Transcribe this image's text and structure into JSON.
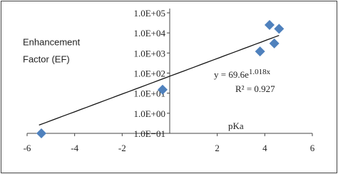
{
  "chart_data": {
    "type": "scatter",
    "y_label_lines": [
      "Enhancement",
      "Factor (EF)"
    ],
    "x_label": "pKa",
    "x": [
      -5.4,
      -0.3,
      3.8,
      4.2,
      4.4,
      4.6
    ],
    "series": [
      {
        "color": "#4f81bd",
        "values": [
          0.1,
          15,
          1200,
          25000,
          3000,
          16000
        ]
      }
    ],
    "xlim": [
      -6,
      6
    ],
    "xticks": [
      -6,
      -4,
      -2,
      2,
      4,
      6
    ],
    "ylim": [
      0.1,
      100000
    ],
    "log_y": true,
    "yticks": [
      {
        "value": 100000,
        "label": "1.0E+05"
      },
      {
        "value": 10000,
        "label": "1.0E+04"
      },
      {
        "value": 1000,
        "label": "1.0E+03"
      },
      {
        "value": 100,
        "label": "1.0E+02"
      },
      {
        "value": 10,
        "label": "1.0E+01"
      },
      {
        "value": 1,
        "label": "1.0E+00"
      },
      {
        "value": 0.1,
        "label": "1.0E−01"
      }
    ],
    "trendline": {
      "a": 69.6,
      "b": 1.018,
      "x": [
        -5.5,
        4.6
      ],
      "equation": "y = 69.6e",
      "exponent": "1.018x",
      "r_squared": "R² = 0.927"
    }
  }
}
